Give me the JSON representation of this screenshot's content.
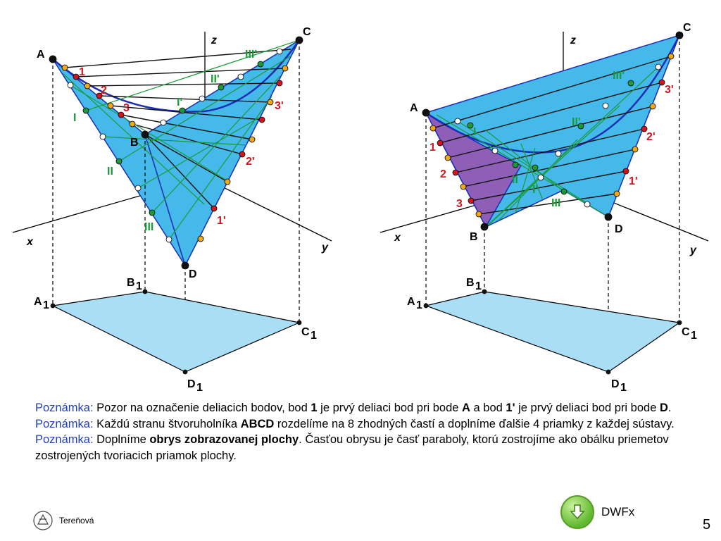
{
  "labels": {
    "A": "A",
    "B": "B",
    "C": "C",
    "D": "D",
    "x": "x",
    "y": "y",
    "z": "z",
    "A1": "A",
    "B1": "B",
    "C1": "C",
    "D1": "D",
    "sub1": "1",
    "n1": "1",
    "n2": "2",
    "n3": "3",
    "n1p": "1'",
    "n2p": "2'",
    "n3p": "3'",
    "rI": "I",
    "rII": "II",
    "rIII": "III",
    "rIp": "I'",
    "rIIp": "II'",
    "rIIIp": "III'"
  },
  "notes": [
    {
      "prefix": "Poznámka:",
      "parts": [
        " Pozor na označenie deliacich bodov, bod ",
        "1",
        " je prvý deliaci bod pri bode ",
        "A",
        " a bod ",
        "1'",
        " je prvý deliaci bod pri bode ",
        "D",
        "."
      ]
    },
    {
      "prefix": "Poznámka:",
      "parts": [
        " Každú stranu štvoruholníka ",
        "ABCD",
        " rozdelíme na 8 zhodných častí a doplníme ďalšie 4 priamky z každej sústavy."
      ]
    },
    {
      "prefix": "Poznámka:",
      "parts": [
        " Doplníme ",
        "obrys zobrazovanej plochy",
        ". Časťou obrysu je časť paraboly, ktorú zostrojíme ako obálku priemetov zostrojených tvoriacich priamok plochy."
      ]
    }
  ],
  "dwfx_label": "DWFx",
  "author": "Tereňová",
  "page_number": "5",
  "colors": {
    "surface": "#44b9ea",
    "surface_back": "#8f5fb8",
    "ground": "#a9def4",
    "edge": "#1a2fb5",
    "green": "#1a9b3a",
    "red": "#d0161e",
    "orange": "#f0a818",
    "label_red": "#d0161e",
    "label_green": "#1b9a3a"
  }
}
